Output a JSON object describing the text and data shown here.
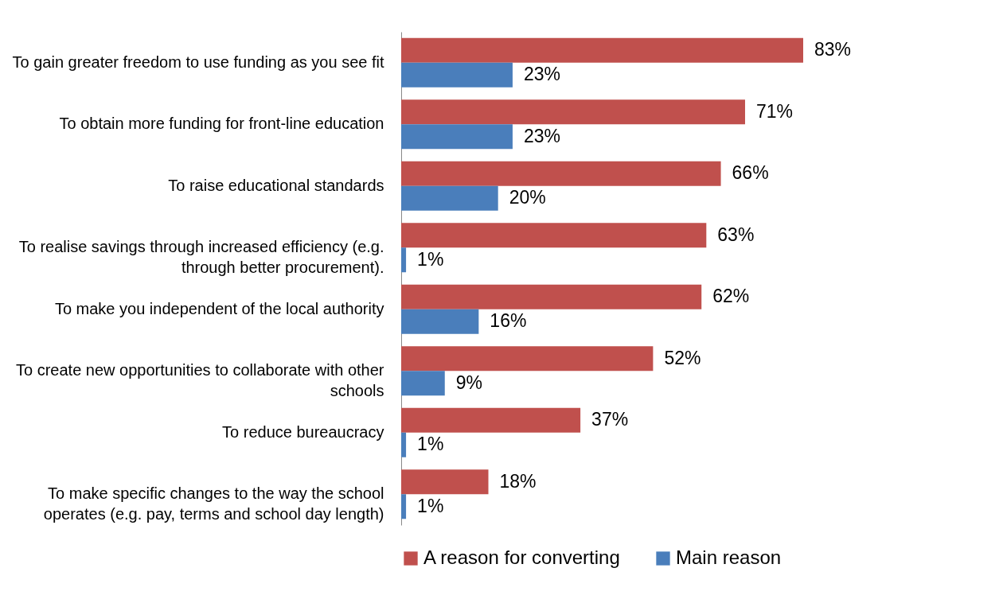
{
  "chart_data": {
    "type": "bar",
    "orientation": "horizontal",
    "categories": [
      "To gain greater freedom to use funding as you see fit",
      "To obtain more funding for front-line education",
      "To raise educational standards",
      "To realise savings through increased efficiency (e.g. through better procurement).",
      "To make you independent of the local authority",
      "To create new opportunities to collaborate with other schools",
      "To reduce bureaucracy",
      "To make specific changes to the way the school operates (e.g. pay, terms and school day length)"
    ],
    "series": [
      {
        "name": "A reason for converting",
        "color": "#c0504d",
        "values": [
          83,
          71,
          66,
          63,
          62,
          52,
          37,
          18
        ],
        "value_labels": [
          "83%",
          "71%",
          "66%",
          "63%",
          "62%",
          "52%",
          "37%",
          "18%"
        ]
      },
      {
        "name": "Main reason",
        "color": "#4a7ebb",
        "values": [
          23,
          23,
          20,
          1,
          16,
          9,
          1,
          1
        ],
        "value_labels": [
          "23%",
          "23%",
          "20%",
          "1%",
          "16%",
          "9%",
          "1%",
          "1%"
        ]
      }
    ],
    "tick_labels": "y",
    "grid": false,
    "legend": "bottom"
  }
}
